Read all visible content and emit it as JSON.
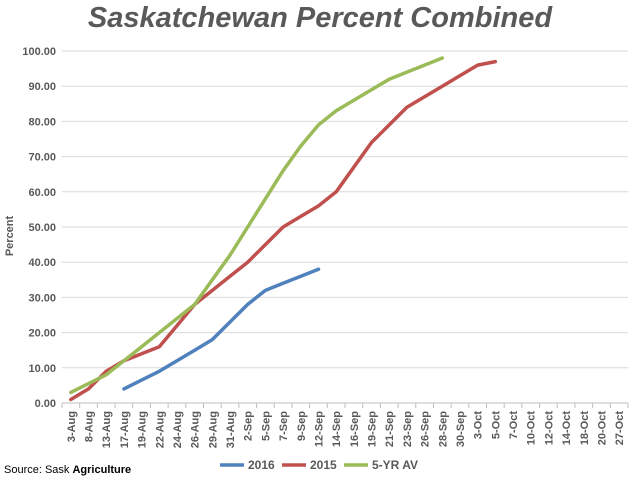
{
  "chart_data": {
    "type": "line",
    "title": "Saskatchewan Percent Combined",
    "ylabel": "Percent",
    "xlabel": "",
    "ylim": [
      0,
      100
    ],
    "yticks": [
      "0.00",
      "10.00",
      "20.00",
      "30.00",
      "40.00",
      "50.00",
      "60.00",
      "70.00",
      "80.00",
      "90.00",
      "100.00"
    ],
    "grid": true,
    "legend_position": "bottom",
    "categories": [
      "3-Aug",
      "8-Aug",
      "13-Aug",
      "17-Aug",
      "19-Aug",
      "22-Aug",
      "24-Aug",
      "26-Aug",
      "29-Aug",
      "31-Aug",
      "2-Sep",
      "5-Sep",
      "7-Sep",
      "9-Sep",
      "12-Sep",
      "14-Sep",
      "16-Sep",
      "19-Sep",
      "21-Sep",
      "23-Sep",
      "26-Sep",
      "28-Sep",
      "30-Sep",
      "3-Oct",
      "5-Oct",
      "7-Oct",
      "10-Oct",
      "12-Oct",
      "14-Oct",
      "18-Oct",
      "20-Oct",
      "27-Oct"
    ],
    "series": [
      {
        "name": "2016",
        "color": "#4f81bd",
        "values": [
          null,
          null,
          null,
          4,
          6.5,
          9,
          12,
          15,
          18,
          23,
          28,
          32,
          34,
          36,
          38,
          null,
          null,
          null,
          null,
          null,
          null,
          null,
          null,
          null,
          null,
          null,
          null,
          null,
          null,
          null,
          null,
          null
        ]
      },
      {
        "name": "2015",
        "color": "#c0504d",
        "values": [
          1,
          4,
          9,
          12,
          14,
          16,
          22,
          28,
          32,
          36,
          40,
          45,
          50,
          53,
          56,
          60,
          67,
          74,
          79,
          84,
          87,
          90,
          93,
          96,
          97,
          null,
          null,
          null,
          null,
          null,
          null,
          null
        ]
      },
      {
        "name": "5-YR AV",
        "color": "#9bbb59",
        "values": [
          3,
          5.5,
          8,
          12,
          16,
          20,
          24,
          28,
          35,
          42,
          50,
          58,
          66,
          73,
          79,
          83,
          86,
          89,
          92,
          94,
          96,
          98,
          null,
          null,
          null,
          null,
          null,
          null,
          null,
          null,
          null,
          null
        ]
      }
    ]
  },
  "legend": [
    {
      "label": "2016",
      "color": "#4f81bd"
    },
    {
      "label": "2015",
      "color": "#c0504d"
    },
    {
      "label": "5-YR AV",
      "color": "#9bbb59"
    }
  ],
  "source": {
    "prefix": "Source: Sask ",
    "bold": "Agriculture"
  }
}
